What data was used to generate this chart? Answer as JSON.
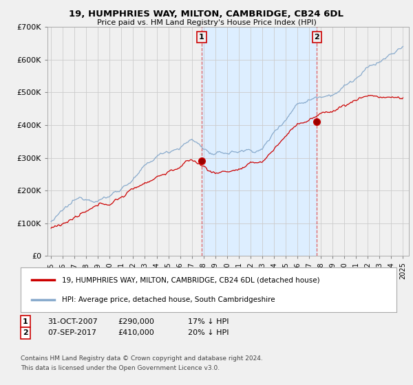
{
  "title": "19, HUMPHRIES WAY, MILTON, CAMBRIDGE, CB24 6DL",
  "subtitle": "Price paid vs. HM Land Registry's House Price Index (HPI)",
  "sale1_date": "31-OCT-2007",
  "sale1_price": 290000,
  "sale1_year": 2007.833,
  "sale2_date": "07-SEP-2017",
  "sale2_price": 410000,
  "sale2_year": 2017.667,
  "legend_house": "19, HUMPHRIES WAY, MILTON, CAMBRIDGE, CB24 6DL (detached house)",
  "legend_hpi": "HPI: Average price, detached house, South Cambridgeshire",
  "footnote1": "Contains HM Land Registry data © Crown copyright and database right 2024.",
  "footnote2": "This data is licensed under the Open Government Licence v3.0.",
  "house_color": "#cc0000",
  "hpi_color": "#88aacc",
  "shade_color": "#ddeeff",
  "vline_color": "#dd4444",
  "background_color": "#f0f0f0",
  "plot_bg_color": "#f0f0f0",
  "grid_color": "#cccccc",
  "ylim": [
    0,
    700000
  ],
  "yticks": [
    0,
    100000,
    200000,
    300000,
    400000,
    500000,
    600000,
    700000
  ],
  "xlim_min": 1994.7,
  "xlim_max": 2025.5
}
